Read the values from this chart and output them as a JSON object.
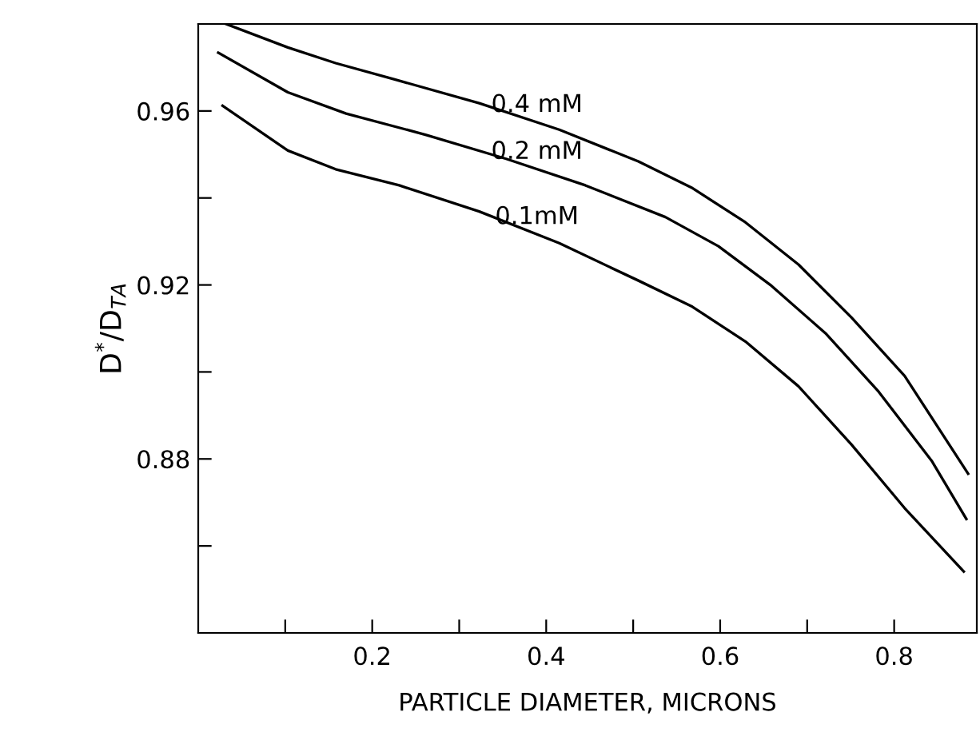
{
  "chart_data": {
    "type": "line",
    "xlabel": "PARTICLE DIAMETER, MICRONS",
    "ylabel": "D$^{*}$/D$_{TA}$",
    "xlim": [
      0,
      0.895
    ],
    "ylim": [
      0.84,
      0.98
    ],
    "xticks": [
      {
        "value": 0.1,
        "label": null
      },
      0.2,
      {
        "value": 0.3,
        "label": null
      },
      0.4,
      {
        "value": 0.5,
        "label": null
      },
      0.6,
      {
        "value": 0.7,
        "label": null
      },
      0.8
    ],
    "yticks": [
      {
        "value": 0.86,
        "label": null
      },
      0.88,
      {
        "value": 0.9,
        "label": null
      },
      0.92,
      {
        "value": 0.94,
        "label": null
      },
      0.96
    ],
    "grid": false,
    "legend": false,
    "marker": "none",
    "line_style": "solid",
    "series": [
      {
        "name": "0.4 mM",
        "color": "#000000",
        "x": [
          0.032,
          0.103,
          0.158,
          0.225,
          0.323,
          0.415,
          0.506,
          0.567,
          0.629,
          0.69,
          0.751,
          0.812,
          0.885
        ],
        "values": [
          0.98,
          0.9746,
          0.971,
          0.9673,
          0.9618,
          0.9557,
          0.9484,
          0.9424,
          0.9344,
          0.9247,
          0.9125,
          0.8991,
          0.8766
        ]
      },
      {
        "name": "0.2 mM",
        "color": "#000000",
        "x": [
          0.023,
          0.103,
          0.17,
          0.262,
          0.354,
          0.445,
          0.537,
          0.598,
          0.659,
          0.721,
          0.782,
          0.843,
          0.883
        ],
        "values": [
          0.9734,
          0.9643,
          0.9594,
          0.9545,
          0.949,
          0.9429,
          0.9356,
          0.9289,
          0.9198,
          0.9089,
          0.8955,
          0.8796,
          0.8662
        ]
      },
      {
        "name": "0.1mM",
        "color": "#000000",
        "x": [
          0.028,
          0.103,
          0.158,
          0.231,
          0.323,
          0.415,
          0.506,
          0.568,
          0.629,
          0.69,
          0.751,
          0.812,
          0.88
        ],
        "values": [
          0.9612,
          0.9509,
          0.9466,
          0.9429,
          0.9369,
          0.9296,
          0.921,
          0.915,
          0.907,
          0.8967,
          0.8833,
          0.8687,
          0.8541
        ]
      }
    ]
  }
}
